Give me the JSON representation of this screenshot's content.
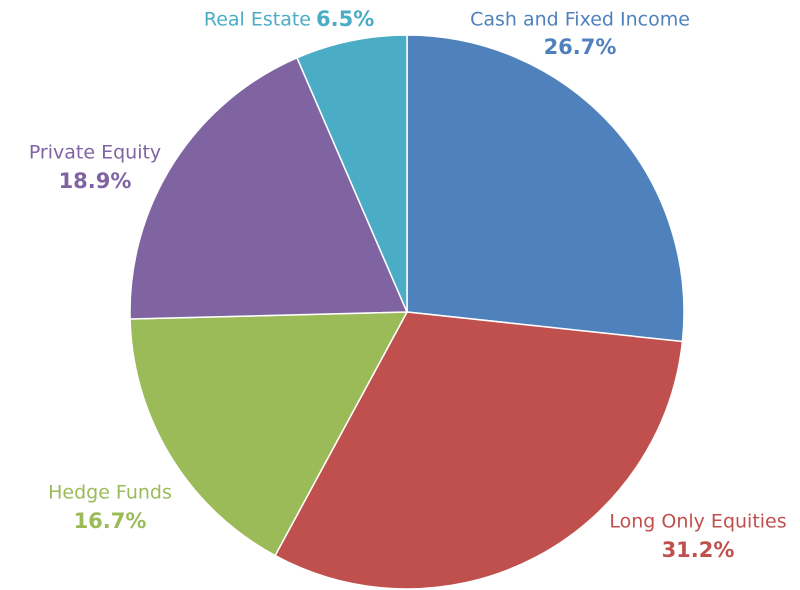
{
  "chart_data": {
    "type": "pie",
    "categories": [
      "Cash and Fixed Income",
      "Long Only Equities",
      "Hedge Funds",
      "Private Equity",
      "Real Estate"
    ],
    "values": [
      26.7,
      31.2,
      16.7,
      18.9,
      6.5
    ],
    "value_labels": [
      "26.7%",
      "31.2%",
      "16.7%",
      "18.9%",
      "6.5%"
    ],
    "colors": [
      "#4f81bd",
      "#c0504d",
      "#9bbb59",
      "#8064a2",
      "#4bacc6"
    ]
  }
}
